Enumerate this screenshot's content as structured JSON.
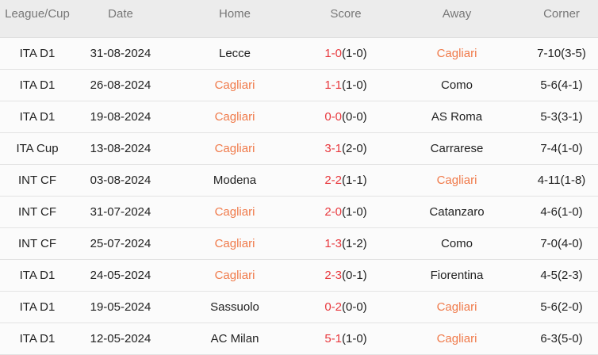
{
  "headers": [
    "League/Cup",
    "Date",
    "Home",
    "Score",
    "Away",
    "Corner"
  ],
  "highlight_team": "Cagliari",
  "colors": {
    "highlight_team": "#f07a4a",
    "score": "#e8383d",
    "header_bg": "#ececec"
  },
  "rows": [
    {
      "league": "ITA D1",
      "date": "31-08-2024",
      "home": "Lecce",
      "ft": "1-0",
      "ht": "(1-0)",
      "away": "Cagliari",
      "corner": "7-10(3-5)"
    },
    {
      "league": "ITA D1",
      "date": "26-08-2024",
      "home": "Cagliari",
      "ft": "1-1",
      "ht": "(1-0)",
      "away": "Como",
      "corner": "5-6(4-1)"
    },
    {
      "league": "ITA D1",
      "date": "19-08-2024",
      "home": "Cagliari",
      "ft": "0-0",
      "ht": "(0-0)",
      "away": "AS Roma",
      "corner": "5-3(3-1)"
    },
    {
      "league": "ITA Cup",
      "date": "13-08-2024",
      "home": "Cagliari",
      "ft": "3-1",
      "ht": "(2-0)",
      "away": "Carrarese",
      "corner": "7-4(1-0)"
    },
    {
      "league": "INT CF",
      "date": "03-08-2024",
      "home": "Modena",
      "ft": "2-2",
      "ht": "(1-1)",
      "away": "Cagliari",
      "corner": "4-11(1-8)"
    },
    {
      "league": "INT CF",
      "date": "31-07-2024",
      "home": "Cagliari",
      "ft": "2-0",
      "ht": "(1-0)",
      "away": "Catanzaro",
      "corner": "4-6(1-0)"
    },
    {
      "league": "INT CF",
      "date": "25-07-2024",
      "home": "Cagliari",
      "ft": "1-3",
      "ht": "(1-2)",
      "away": "Como",
      "corner": "7-0(4-0)"
    },
    {
      "league": "ITA D1",
      "date": "24-05-2024",
      "home": "Cagliari",
      "ft": "2-3",
      "ht": "(0-1)",
      "away": "Fiorentina",
      "corner": "4-5(2-3)"
    },
    {
      "league": "ITA D1",
      "date": "19-05-2024",
      "home": "Sassuolo",
      "ft": "0-2",
      "ht": "(0-0)",
      "away": "Cagliari",
      "corner": "5-6(2-0)"
    },
    {
      "league": "ITA D1",
      "date": "12-05-2024",
      "home": "AC Milan",
      "ft": "5-1",
      "ht": "(1-0)",
      "away": "Cagliari",
      "corner": "6-3(5-0)"
    }
  ]
}
